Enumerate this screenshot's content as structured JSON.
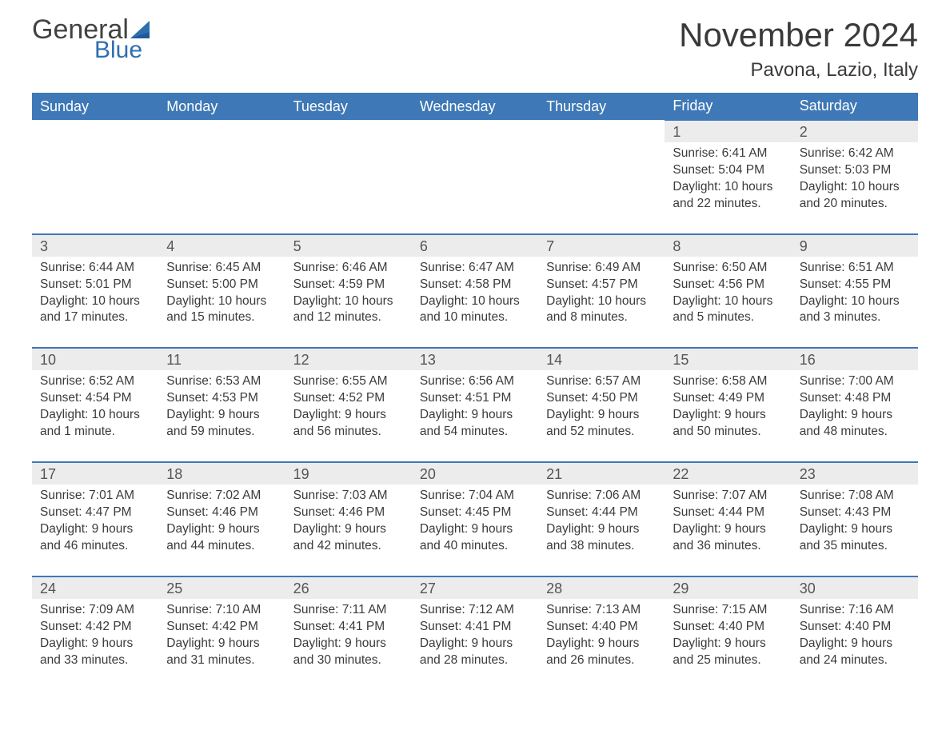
{
  "brand": {
    "word1": "General",
    "word2": "Blue"
  },
  "title": "November 2024",
  "location": "Pavona, Lazio, Italy",
  "colors": {
    "header_bg": "#3e78b6",
    "header_text": "#ffffff",
    "daynum_bg": "#ececec",
    "row_border": "#3e78b6",
    "page_bg": "#ffffff",
    "body_text": "#3b3b3b",
    "title_text": "#3a3a3a",
    "logo_gray": "#424242",
    "logo_blue": "#2f6fb0"
  },
  "typography": {
    "title_fontsize": 42,
    "location_fontsize": 24,
    "dayheader_fontsize": 18,
    "daynum_fontsize": 18,
    "cell_fontsize": 15.5
  },
  "day_headers": [
    "Sunday",
    "Monday",
    "Tuesday",
    "Wednesday",
    "Thursday",
    "Friday",
    "Saturday"
  ],
  "weeks": [
    [
      null,
      null,
      null,
      null,
      null,
      {
        "n": "1",
        "sr": "6:41 AM",
        "ss": "5:04 PM",
        "dl": "10 hours and 22 minutes."
      },
      {
        "n": "2",
        "sr": "6:42 AM",
        "ss": "5:03 PM",
        "dl": "10 hours and 20 minutes."
      }
    ],
    [
      {
        "n": "3",
        "sr": "6:44 AM",
        "ss": "5:01 PM",
        "dl": "10 hours and 17 minutes."
      },
      {
        "n": "4",
        "sr": "6:45 AM",
        "ss": "5:00 PM",
        "dl": "10 hours and 15 minutes."
      },
      {
        "n": "5",
        "sr": "6:46 AM",
        "ss": "4:59 PM",
        "dl": "10 hours and 12 minutes."
      },
      {
        "n": "6",
        "sr": "6:47 AM",
        "ss": "4:58 PM",
        "dl": "10 hours and 10 minutes."
      },
      {
        "n": "7",
        "sr": "6:49 AM",
        "ss": "4:57 PM",
        "dl": "10 hours and 8 minutes."
      },
      {
        "n": "8",
        "sr": "6:50 AM",
        "ss": "4:56 PM",
        "dl": "10 hours and 5 minutes."
      },
      {
        "n": "9",
        "sr": "6:51 AM",
        "ss": "4:55 PM",
        "dl": "10 hours and 3 minutes."
      }
    ],
    [
      {
        "n": "10",
        "sr": "6:52 AM",
        "ss": "4:54 PM",
        "dl": "10 hours and 1 minute."
      },
      {
        "n": "11",
        "sr": "6:53 AM",
        "ss": "4:53 PM",
        "dl": "9 hours and 59 minutes."
      },
      {
        "n": "12",
        "sr": "6:55 AM",
        "ss": "4:52 PM",
        "dl": "9 hours and 56 minutes."
      },
      {
        "n": "13",
        "sr": "6:56 AM",
        "ss": "4:51 PM",
        "dl": "9 hours and 54 minutes."
      },
      {
        "n": "14",
        "sr": "6:57 AM",
        "ss": "4:50 PM",
        "dl": "9 hours and 52 minutes."
      },
      {
        "n": "15",
        "sr": "6:58 AM",
        "ss": "4:49 PM",
        "dl": "9 hours and 50 minutes."
      },
      {
        "n": "16",
        "sr": "7:00 AM",
        "ss": "4:48 PM",
        "dl": "9 hours and 48 minutes."
      }
    ],
    [
      {
        "n": "17",
        "sr": "7:01 AM",
        "ss": "4:47 PM",
        "dl": "9 hours and 46 minutes."
      },
      {
        "n": "18",
        "sr": "7:02 AM",
        "ss": "4:46 PM",
        "dl": "9 hours and 44 minutes."
      },
      {
        "n": "19",
        "sr": "7:03 AM",
        "ss": "4:46 PM",
        "dl": "9 hours and 42 minutes."
      },
      {
        "n": "20",
        "sr": "7:04 AM",
        "ss": "4:45 PM",
        "dl": "9 hours and 40 minutes."
      },
      {
        "n": "21",
        "sr": "7:06 AM",
        "ss": "4:44 PM",
        "dl": "9 hours and 38 minutes."
      },
      {
        "n": "22",
        "sr": "7:07 AM",
        "ss": "4:44 PM",
        "dl": "9 hours and 36 minutes."
      },
      {
        "n": "23",
        "sr": "7:08 AM",
        "ss": "4:43 PM",
        "dl": "9 hours and 35 minutes."
      }
    ],
    [
      {
        "n": "24",
        "sr": "7:09 AM",
        "ss": "4:42 PM",
        "dl": "9 hours and 33 minutes."
      },
      {
        "n": "25",
        "sr": "7:10 AM",
        "ss": "4:42 PM",
        "dl": "9 hours and 31 minutes."
      },
      {
        "n": "26",
        "sr": "7:11 AM",
        "ss": "4:41 PM",
        "dl": "9 hours and 30 minutes."
      },
      {
        "n": "27",
        "sr": "7:12 AM",
        "ss": "4:41 PM",
        "dl": "9 hours and 28 minutes."
      },
      {
        "n": "28",
        "sr": "7:13 AM",
        "ss": "4:40 PM",
        "dl": "9 hours and 26 minutes."
      },
      {
        "n": "29",
        "sr": "7:15 AM",
        "ss": "4:40 PM",
        "dl": "9 hours and 25 minutes."
      },
      {
        "n": "30",
        "sr": "7:16 AM",
        "ss": "4:40 PM",
        "dl": "9 hours and 24 minutes."
      }
    ]
  ],
  "labels": {
    "sunrise": "Sunrise: ",
    "sunset": "Sunset: ",
    "daylight": "Daylight: "
  }
}
